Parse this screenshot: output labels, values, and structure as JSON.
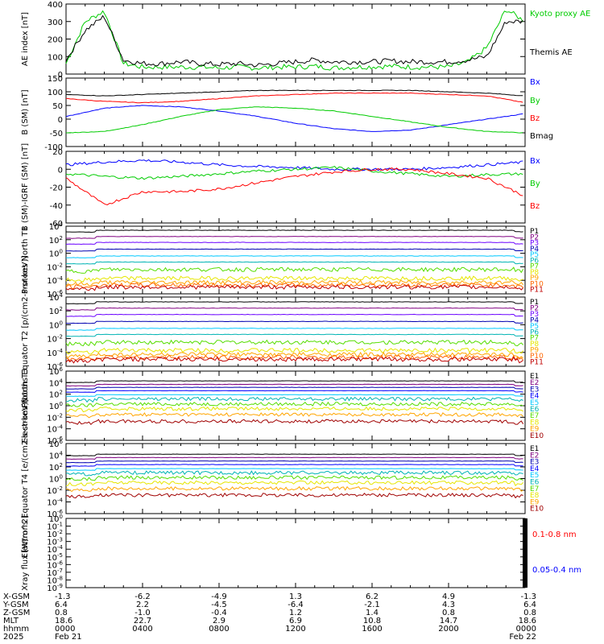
{
  "colors": {
    "black": "#000000",
    "blue": "#0000ff",
    "green": "#00cc00",
    "red": "#ff0000",
    "purple": "#800080",
    "violet": "#6a00ff",
    "navy": "#0000b0",
    "cyan": "#00c8ff",
    "teal": "#00b4b4",
    "lime": "#55dd00",
    "yellow": "#e6e600",
    "orange": "#ffa500",
    "darkorange": "#ff6600",
    "darkred": "#c00000",
    "maroon": "#a00000"
  },
  "chart_data": [
    {
      "type": "line",
      "id": "ae",
      "ylabel": "AE index [nT]",
      "ylim": [
        0,
        400
      ],
      "yticks": [
        0,
        100,
        200,
        300,
        400
      ],
      "grid": false,
      "legend_placement": "right",
      "series": [
        {
          "name": "Kyoto proxy AE",
          "color": "#00cc00",
          "x": [
            0,
            1,
            2,
            3,
            4,
            5,
            6,
            7,
            8,
            9,
            10,
            11,
            12,
            13,
            14,
            15,
            16,
            17,
            18,
            19,
            20,
            21,
            22,
            23,
            24
          ],
          "y": [
            60,
            300,
            360,
            60,
            40,
            40,
            40,
            40,
            35,
            40,
            35,
            40,
            40,
            45,
            35,
            40,
            42,
            45,
            40,
            40,
            40,
            70,
            150,
            370,
            300
          ]
        },
        {
          "name": "Themis AE",
          "color": "#000000",
          "x": [
            0,
            1,
            2,
            3,
            4,
            5,
            6,
            7,
            8,
            9,
            10,
            11,
            12,
            13,
            14,
            15,
            16,
            17,
            18,
            19,
            20,
            21,
            22,
            23,
            24
          ],
          "y": [
            80,
            250,
            330,
            80,
            60,
            60,
            70,
            60,
            55,
            60,
            50,
            60,
            70,
            80,
            70,
            70,
            70,
            75,
            70,
            70,
            70,
            80,
            100,
            300,
            300
          ]
        }
      ]
    },
    {
      "type": "line",
      "id": "bsm",
      "ylabel": "B (SM) [nT]",
      "ylim": [
        -100,
        150
      ],
      "yticks": [
        -100,
        -50,
        0,
        50,
        100,
        150
      ],
      "legend_placement": "right",
      "series": [
        {
          "name": "Bx",
          "color": "#0000ff",
          "x": [
            0,
            2,
            4,
            6,
            8,
            10,
            12,
            14,
            16,
            18,
            20,
            22,
            24
          ],
          "y": [
            10,
            40,
            50,
            45,
            30,
            10,
            -15,
            -35,
            -45,
            -40,
            -20,
            0,
            20
          ]
        },
        {
          "name": "By",
          "color": "#00cc00",
          "x": [
            0,
            2,
            4,
            6,
            8,
            10,
            12,
            14,
            16,
            18,
            20,
            22,
            24
          ],
          "y": [
            -50,
            -45,
            -20,
            10,
            35,
            45,
            40,
            30,
            10,
            -10,
            -30,
            -45,
            -50
          ]
        },
        {
          "name": "Bz",
          "color": "#ff0000",
          "x": [
            0,
            2,
            4,
            6,
            8,
            10,
            12,
            14,
            16,
            18,
            20,
            22,
            24
          ],
          "y": [
            75,
            65,
            60,
            65,
            75,
            85,
            90,
            95,
            95,
            95,
            90,
            85,
            60
          ]
        },
        {
          "name": "Bmag",
          "color": "#000000",
          "x": [
            0,
            2,
            4,
            6,
            8,
            10,
            12,
            14,
            16,
            18,
            20,
            22,
            24
          ],
          "y": [
            90,
            85,
            90,
            95,
            100,
            105,
            105,
            105,
            105,
            105,
            100,
            95,
            85
          ]
        }
      ]
    },
    {
      "type": "line",
      "id": "bigrf",
      "ylabel": "B (SM)-IGRF (SM) [nT]",
      "ylim": [
        -60,
        20
      ],
      "yticks": [
        -60,
        -40,
        -20,
        0,
        20
      ],
      "legend_placement": "right",
      "series": [
        {
          "name": "Bx",
          "color": "#0000ff",
          "x": [
            0,
            2,
            4,
            6,
            8,
            10,
            12,
            14,
            16,
            18,
            20,
            22,
            24
          ],
          "y": [
            5,
            8,
            10,
            8,
            5,
            3,
            2,
            0,
            0,
            0,
            2,
            5,
            8
          ]
        },
        {
          "name": "By",
          "color": "#00cc00",
          "x": [
            0,
            2,
            4,
            6,
            8,
            10,
            12,
            14,
            16,
            18,
            20,
            22,
            24
          ],
          "y": [
            -5,
            -8,
            -10,
            -8,
            -5,
            -2,
            0,
            2,
            -2,
            -5,
            -8,
            -6,
            -5
          ]
        },
        {
          "name": "Bz",
          "color": "#ff0000",
          "x": [
            0,
            2,
            4,
            6,
            8,
            10,
            12,
            14,
            16,
            18,
            20,
            22,
            24
          ],
          "y": [
            -10,
            -40,
            -25,
            -25,
            -22,
            -15,
            -8,
            -3,
            0,
            0,
            -5,
            -10,
            -30
          ]
        }
      ]
    },
    {
      "type": "line",
      "id": "pnorth",
      "ylabel": "Protons North T1",
      "yscale": "log",
      "ylim": [
        1e-06,
        10000.0
      ],
      "yticks": [
        "10^-6",
        "10^-4",
        "10^-2",
        "10^0",
        "10^2",
        "10^4"
      ],
      "legend_placement": "right",
      "series": [
        {
          "name": "P1",
          "color": "#000000",
          "level": 2500
        },
        {
          "name": "P2",
          "color": "#800080",
          "level": 300
        },
        {
          "name": "P3",
          "color": "#6a00ff",
          "level": 40
        },
        {
          "name": "P4",
          "color": "#0000b0",
          "level": 4
        },
        {
          "name": "P5",
          "color": "#00c8ff",
          "level": 0.4
        },
        {
          "name": "P6",
          "color": "#00b4b4",
          "level": 0.05
        },
        {
          "name": "P7",
          "color": "#55dd00",
          "level": 0.004
        },
        {
          "name": "P8",
          "color": "#e6e600",
          "level": 0.0002
        },
        {
          "name": "P9",
          "color": "#ffa500",
          "level": 5e-05
        },
        {
          "name": "P10",
          "color": "#ff6600",
          "level": 2e-05
        },
        {
          "name": "P11",
          "color": "#c00000",
          "level": 1e-05
        }
      ]
    },
    {
      "type": "line",
      "id": "pequator",
      "ylabel": "Protons Equator T2 [p/(cm2-s-sr-keV)]",
      "yscale": "log",
      "ylim": [
        1e-06,
        10000.0
      ],
      "yticks": [
        "10^-6",
        "10^-4",
        "10^-2",
        "10^0",
        "10^2",
        "10^4"
      ],
      "legend_placement": "right",
      "series": [
        {
          "name": "P1",
          "color": "#000000",
          "level": 2000
        },
        {
          "name": "P2",
          "color": "#800080",
          "level": 250
        },
        {
          "name": "P3",
          "color": "#6a00ff",
          "level": 30
        },
        {
          "name": "P4",
          "color": "#0000b0",
          "level": 3
        },
        {
          "name": "P5",
          "color": "#00c8ff",
          "level": 0.3
        },
        {
          "name": "P6",
          "color": "#00b4b4",
          "level": 0.04
        },
        {
          "name": "P7",
          "color": "#55dd00",
          "level": 0.003
        },
        {
          "name": "P8",
          "color": "#e6e600",
          "level": 0.0002
        },
        {
          "name": "P9",
          "color": "#ffa500",
          "level": 5e-05
        },
        {
          "name": "P10",
          "color": "#ff6600",
          "level": 2e-05
        },
        {
          "name": "P11",
          "color": "#c00000",
          "level": 1e-05
        }
      ]
    },
    {
      "type": "line",
      "id": "enorth",
      "ylabel": "Electrons North T3",
      "yscale": "log",
      "ylim": [
        1e-06,
        1000000.0
      ],
      "yticks": [
        "10^-6",
        "10^-4",
        "10^-2",
        "10^0",
        "10^2",
        "10^4",
        "10^6"
      ],
      "legend_placement": "right",
      "series": [
        {
          "name": "E1",
          "color": "#000000",
          "level": 20000
        },
        {
          "name": "E2",
          "color": "#800080",
          "level": 5000
        },
        {
          "name": "E3",
          "color": "#0000b0",
          "level": 1500
        },
        {
          "name": "E4",
          "color": "#0000ff",
          "level": 400
        },
        {
          "name": "E5",
          "color": "#00c8ff",
          "level": 80
        },
        {
          "name": "E6",
          "color": "#00b4b4",
          "level": 15
        },
        {
          "name": "E7",
          "color": "#55dd00",
          "level": 2
        },
        {
          "name": "E8",
          "color": "#e6e600",
          "level": 0.3
        },
        {
          "name": "E9",
          "color": "#ffa500",
          "level": 0.03
        },
        {
          "name": "E10",
          "color": "#a00000",
          "level": 0.002
        }
      ]
    },
    {
      "type": "line",
      "id": "eequator",
      "ylabel": "Electrons Equator T4 [e/(cm2-s-sr-keV)]",
      "yscale": "log",
      "ylim": [
        1e-06,
        1000000.0
      ],
      "yticks": [
        "10^-6",
        "10^-4",
        "10^-2",
        "10^0",
        "10^2",
        "10^4",
        "10^6"
      ],
      "legend_placement": "right",
      "series": [
        {
          "name": "E1",
          "color": "#000000",
          "level": 15000
        },
        {
          "name": "E2",
          "color": "#800080",
          "level": 4000
        },
        {
          "name": "E3",
          "color": "#0000b0",
          "level": 1000
        },
        {
          "name": "E4",
          "color": "#0000ff",
          "level": 250
        },
        {
          "name": "E5",
          "color": "#00c8ff",
          "level": 50
        },
        {
          "name": "E6",
          "color": "#00b4b4",
          "level": 10
        },
        {
          "name": "E7",
          "color": "#55dd00",
          "level": 1.5
        },
        {
          "name": "E8",
          "color": "#e6e600",
          "level": 0.2
        },
        {
          "name": "E9",
          "color": "#ffa500",
          "level": 0.02
        },
        {
          "name": "E10",
          "color": "#a00000",
          "level": 0.0015
        }
      ]
    },
    {
      "type": "line",
      "id": "xray",
      "ylabel": "Xray flux [W/m^2]",
      "yscale": "log",
      "ylim": [
        1e-09,
        1.0
      ],
      "yticks": [
        "10^-9",
        "10^-8",
        "10^-7",
        "10^-6",
        "10^-5",
        "10^-4",
        "10^-3",
        "10^-2",
        "10^-1",
        "10^0"
      ],
      "legend_placement": "right",
      "series": [
        {
          "name": "0.1-0.8 nm",
          "color": "#ff0000"
        },
        {
          "name": "0.05-0.4 nm",
          "color": "#0000ff"
        }
      ]
    }
  ],
  "ephemeris": {
    "rows": [
      {
        "label": "X-GSM",
        "values": [
          "-1.3",
          "-6.2",
          "-4.9",
          "1.3",
          "6.2",
          "4.9",
          "-1.3"
        ]
      },
      {
        "label": "Y-GSM",
        "values": [
          "6.4",
          "2.2",
          "-4.5",
          "-6.4",
          "-2.1",
          "4.3",
          "6.4"
        ]
      },
      {
        "label": "Z-GSM",
        "values": [
          "0.8",
          "-1.0",
          "-0.4",
          "1.2",
          "1.4",
          "0.8",
          "0.8"
        ]
      },
      {
        "label": "MLT",
        "values": [
          "18.6",
          "22.7",
          "2.9",
          "6.9",
          "10.8",
          "14.7",
          "18.6"
        ]
      },
      {
        "label": "hhmm",
        "values": [
          "0000",
          "0400",
          "0800",
          "1200",
          "1600",
          "2000",
          "0000"
        ]
      },
      {
        "label": "2025",
        "values": [
          "Feb 21",
          "",
          "",
          "",
          "",
          "",
          "Feb 22"
        ]
      }
    ]
  }
}
